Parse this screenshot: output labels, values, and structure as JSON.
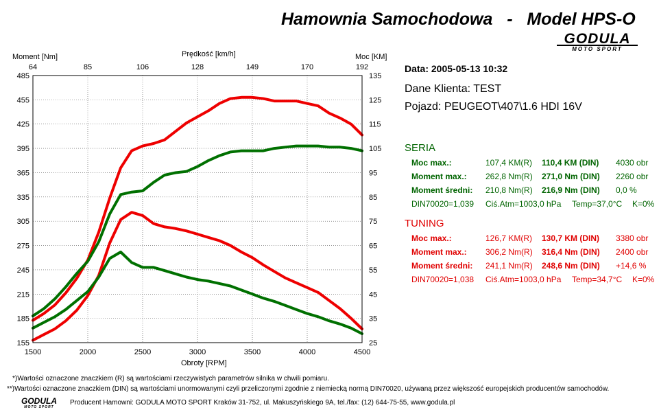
{
  "header": {
    "title": "Hamownia Samochodowa   -   Model HPS-O",
    "logo_main": "GODULA",
    "logo_sub": "MOTO SPORT"
  },
  "info": {
    "date": "Data: 2005-05-13  10:32",
    "client": "Dane Klienta: TEST",
    "vehicle": "Pojazd: PEUGEOT\\407\\1.6 HDI 16V"
  },
  "seria": {
    "title": "SERIA",
    "rows": [
      {
        "label": "Moc max.:",
        "r": "107,4 KM(R)",
        "din": "110,4 KM (DIN)",
        "extra": "4030 obr"
      },
      {
        "label": "Moment max.:",
        "r": "262,8 Nm(R)",
        "din": "271,0 Nm (DIN)",
        "extra": "2260 obr"
      },
      {
        "label": "Moment średni:",
        "r": "210,8 Nm(R)",
        "din": "216,9 Nm (DIN)",
        "extra": "0,0 %"
      }
    ],
    "din_line": {
      "a": "DIN70020=1,039",
      "b": "Ciś.Atm=1003,0 hPa",
      "c": "Temp=37,0°C",
      "d": "K=0%"
    }
  },
  "tuning": {
    "title": "TUNING",
    "rows": [
      {
        "label": "Moc max.:",
        "r": "126,7 KM(R)",
        "din": "130,7 KM (DIN)",
        "extra": "3380 obr"
      },
      {
        "label": "Moment max.:",
        "r": "306,2 Nm(R)",
        "din": "316,4 Nm (DIN)",
        "extra": "2400 obr"
      },
      {
        "label": "Moment średni:",
        "r": "241,1 Nm(R)",
        "din": "248,6 Nm (DIN)",
        "extra": "+14,6 %"
      }
    ],
    "din_line": {
      "a": "DIN70020=1,038",
      "b": "Ciś.Atm=1003,0 hPa",
      "c": "Temp=34,7°C",
      "d": "K=0%"
    }
  },
  "notes": {
    "line1": "*)Wartości oznaczone znaczkiem (R) są wartościami rzeczywistych parametrów silnika w chwili pomiaru.",
    "line2": "**)Wartości oznaczone znaczkiem (DIN) są wartościami unormowanymi czyli przeliczonymi zgodnie z niemiecką normą DIN70020, używaną przez większość europejskich producentów samochodów.",
    "producer": "Producent Hamowni: GODULA MOTO SPORT Kraków 31-752, ul. Makuszyńskiego 9A, tel./fax: (12) 644-75-55, www.godula.pl"
  },
  "colors": {
    "seria": "#007000",
    "tuning": "#ee0000",
    "grid": "#555555"
  },
  "chart_data": {
    "type": "line",
    "left_axis_label": "Moment [Nm]",
    "right_axis_label": "Moc [KM]",
    "top_axis_label": "Prędkość [km/h]",
    "bottom_axis_label": "Obroty [RPM]",
    "xlim": [
      1500,
      4500
    ],
    "x_ticks": [
      "1500",
      "2000",
      "2500",
      "3000",
      "3500",
      "4000",
      "4500"
    ],
    "x_tick_values": [
      1500,
      2000,
      2500,
      3000,
      3500,
      4000,
      4500
    ],
    "top_ticks": [
      "64",
      "85",
      "106",
      "128",
      "149",
      "170",
      "192"
    ],
    "ylim_left": [
      155,
      485
    ],
    "left_ticks": [
      "155",
      "185",
      "215",
      "245",
      "275",
      "305",
      "335",
      "365",
      "395",
      "425",
      "455",
      "485"
    ],
    "left_tick_values": [
      155,
      185,
      215,
      245,
      275,
      305,
      335,
      365,
      395,
      425,
      455,
      485
    ],
    "ylim_right": [
      25,
      135
    ],
    "right_ticks": [
      "25",
      "35",
      "45",
      "55",
      "65",
      "75",
      "85",
      "95",
      "105",
      "115",
      "125",
      "135"
    ],
    "right_tick_values": [
      25,
      35,
      45,
      55,
      65,
      75,
      85,
      95,
      105,
      115,
      125,
      135
    ],
    "series": [
      {
        "name": "TUNING",
        "axis": "right",
        "color": "#ee0000",
        "x": [
          1500,
          1600,
          1700,
          1800,
          1900,
          2000,
          2100,
          2200,
          2300,
          2400,
          2500,
          2600,
          2700,
          2800,
          2900,
          3000,
          3100,
          3200,
          3300,
          3400,
          3500,
          3600,
          3700,
          3800,
          3900,
          4000,
          4100,
          4200,
          4300,
          4400,
          4500
        ],
        "y": [
          34.2,
          37.0,
          40.5,
          45.5,
          51.5,
          59.0,
          70.5,
          84.5,
          97.0,
          104.0,
          106.0,
          107.0,
          108.5,
          112.0,
          115.5,
          118.0,
          120.5,
          123.5,
          125.5,
          126.0,
          126.0,
          125.5,
          124.5,
          124.5,
          124.5,
          123.5,
          122.5,
          119.5,
          117.5,
          115.0,
          110.5
        ]
      },
      {
        "name": "SERIA",
        "axis": "right",
        "color": "#007000",
        "x": [
          1500,
          1600,
          1700,
          1800,
          1900,
          2000,
          2100,
          2200,
          2300,
          2400,
          2500,
          2600,
          2700,
          2800,
          2900,
          3000,
          3100,
          3200,
          3300,
          3400,
          3500,
          3600,
          3700,
          3800,
          3900,
          4000,
          4100,
          4200,
          4300,
          4400,
          4500
        ],
        "y": [
          36.0,
          39.0,
          43.0,
          48.0,
          53.5,
          58.5,
          66.5,
          78.0,
          86.0,
          87.0,
          87.5,
          91.0,
          94.0,
          95.0,
          95.5,
          97.5,
          100.0,
          102.0,
          103.5,
          104.0,
          104.0,
          104.0,
          105.0,
          105.5,
          106.0,
          106.0,
          106.0,
          105.5,
          105.5,
          105.0,
          104.0
        ]
      },
      {
        "name": "TUNING",
        "axis": "left",
        "color": "#ee0000",
        "x": [
          1500,
          1600,
          1700,
          1800,
          1900,
          2000,
          2100,
          2200,
          2300,
          2400,
          2500,
          2600,
          2700,
          2800,
          2900,
          3000,
          3100,
          3200,
          3300,
          3400,
          3500,
          3600,
          3700,
          3800,
          3900,
          4000,
          4100,
          4200,
          4300,
          4400,
          4500
        ],
        "y": [
          158,
          165,
          172,
          182,
          195,
          213,
          238,
          278,
          307,
          316,
          312,
          302,
          298,
          296,
          293,
          289,
          285,
          281,
          275,
          267,
          260,
          251,
          243,
          235,
          229,
          223,
          217,
          207,
          197,
          185,
          172
        ]
      },
      {
        "name": "SERIA",
        "axis": "left",
        "color": "#007000",
        "x": [
          1500,
          1600,
          1700,
          1800,
          1900,
          2000,
          2100,
          2200,
          2300,
          2400,
          2500,
          2600,
          2700,
          2800,
          2900,
          3000,
          3100,
          3200,
          3300,
          3400,
          3500,
          3600,
          3700,
          3800,
          3900,
          4000,
          4100,
          4200,
          4300,
          4400,
          4500
        ],
        "y": [
          173,
          180,
          187,
          196,
          207,
          218,
          236,
          259,
          267,
          254,
          248,
          248,
          244,
          240,
          236,
          233,
          231,
          228,
          225,
          220,
          215,
          210,
          206,
          201,
          196,
          191,
          187,
          182,
          178,
          173,
          166
        ]
      }
    ]
  }
}
